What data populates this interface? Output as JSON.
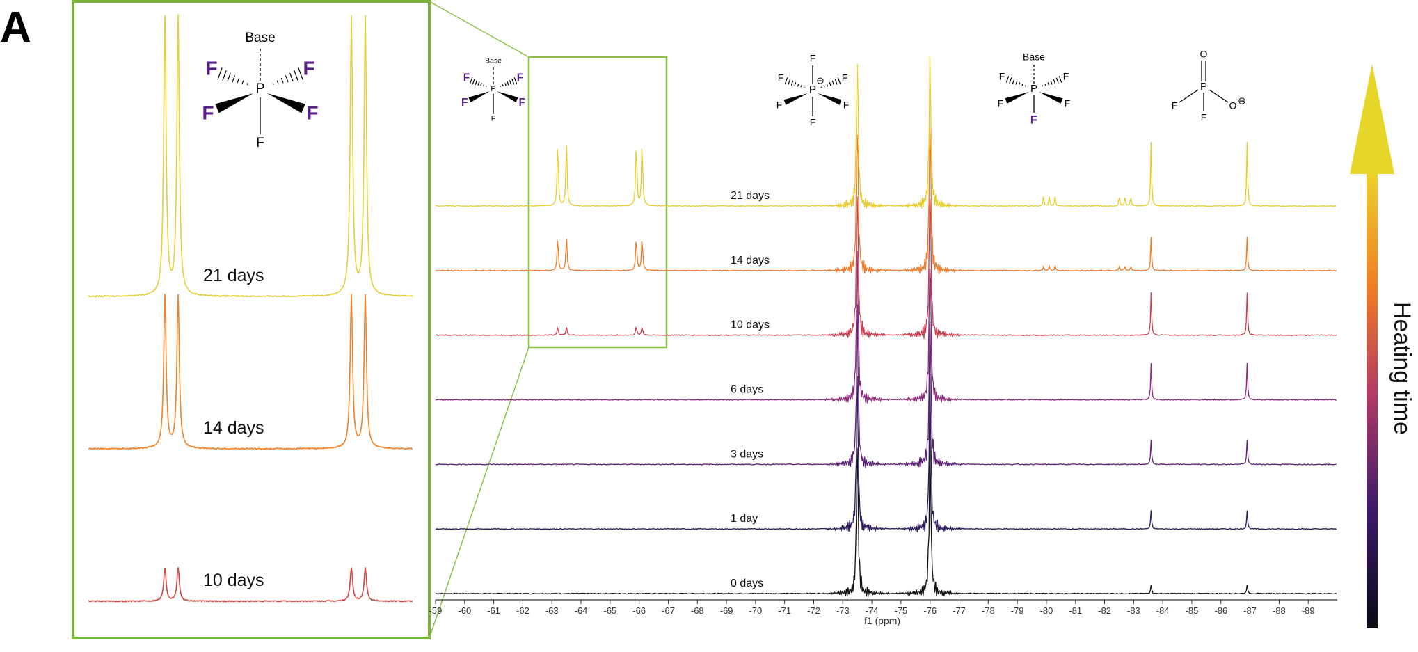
{
  "panel_label": "A",
  "heating_label": "Heating time",
  "colors": {
    "inset_border": "#7ab33a",
    "zoom_box": "#8cc04a",
    "axis": "#333333"
  },
  "structures": {
    "base_label": "Base",
    "f": "F",
    "p": "P",
    "o": "O",
    "charge": "⊖",
    "highlight_color": "#5a1e8c"
  },
  "chart_data": [
    {
      "type": "line",
      "name": "main",
      "xlabel": "f1 (ppm)",
      "xlim": [
        -59,
        -90
      ],
      "x_ticks": [
        -59,
        -60,
        -61,
        -62,
        -63,
        -64,
        -65,
        -66,
        -67,
        -68,
        -69,
        -70,
        -71,
        -72,
        -73,
        -74,
        -75,
        -76,
        -77,
        -78,
        -79,
        -80,
        -81,
        -82,
        -83,
        -84,
        -85,
        -86,
        -87,
        -88,
        -89
      ],
      "grid": false,
      "peaks_ppm": {
        "PF6_doublet": [
          -73.5,
          -76.0
        ],
        "PF5Base_doublet": [
          -63.2,
          -63.5,
          -65.9,
          -66.1
        ],
        "PF4_multiplets": [
          -79.9,
          -80.1,
          -80.3,
          -82.5,
          -82.7,
          -82.9
        ],
        "PO2F2_doublet": [
          -83.6,
          -86.9
        ]
      },
      "series": [
        {
          "label": "0 days",
          "color": "#111111",
          "pf6": 1.0,
          "pf5": 0.0,
          "pf4": 0.0,
          "po2f2": 0.06
        },
        {
          "label": "1 day",
          "color": "#2c1a5c",
          "pf6": 1.0,
          "pf5": 0.0,
          "pf4": 0.0,
          "po2f2": 0.12
        },
        {
          "label": "3 days",
          "color": "#5e2377",
          "pf6": 1.0,
          "pf5": 0.0,
          "pf4": 0.0,
          "po2f2": 0.16
        },
        {
          "label": "6 days",
          "color": "#8a2a78",
          "pf6": 1.0,
          "pf5": 0.0,
          "pf4": 0.0,
          "po2f2": 0.24
        },
        {
          "label": "10 days",
          "color": "#c93f52",
          "pf6": 1.0,
          "pf5": 0.08,
          "pf4": 0.0,
          "po2f2": 0.28
        },
        {
          "label": "14 days",
          "color": "#f07a28",
          "pf6": 1.0,
          "pf5": 0.32,
          "pf4": 0.04,
          "po2f2": 0.22
        },
        {
          "label": "21 days",
          "color": "#e8cc2c",
          "pf6": 1.0,
          "pf5": 0.62,
          "pf4": 0.09,
          "po2f2": 0.42
        }
      ]
    },
    {
      "type": "line",
      "name": "inset",
      "series": [
        {
          "label": "21 days",
          "color": "#e3cf3c",
          "height": 1.0
        },
        {
          "label": "14 days",
          "color": "#f0822a",
          "height": 0.55
        },
        {
          "label": "10 days",
          "color": "#d2473e",
          "height": 0.12
        }
      ]
    }
  ]
}
